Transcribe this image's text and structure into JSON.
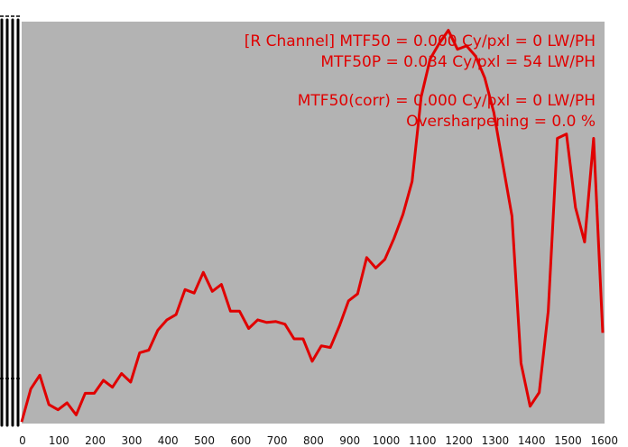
{
  "chart_data": {
    "type": "line",
    "title": "",
    "xlabel": "",
    "ylabel": "",
    "xlim": [
      0,
      1600
    ],
    "x_ticks": [
      "0",
      "100",
      "200",
      "300",
      "400",
      "500",
      "600",
      "700",
      "800",
      "900",
      "1000",
      "1100",
      "1200",
      "1300",
      "1400",
      "1500",
      "1600"
    ],
    "grid": false,
    "series": [
      {
        "color": "#e00000",
        "x": [
          0,
          25,
          50,
          75,
          100,
          125,
          150,
          175,
          200,
          225,
          250,
          275,
          300,
          325,
          350,
          375,
          400,
          425,
          450,
          475,
          500,
          525,
          550,
          575,
          600,
          625,
          650,
          675,
          700,
          725,
          750,
          775,
          800,
          825,
          850,
          875,
          900,
          925,
          950,
          975,
          1000,
          1025,
          1050,
          1075,
          1100,
          1125,
          1150,
          1175,
          1200,
          1225,
          1250,
          1275,
          1300,
          1325,
          1350,
          1375,
          1400,
          1425,
          1450,
          1475,
          1500,
          1525,
          1550,
          1575,
          1600
        ],
        "y": [
          2,
          40,
          56,
          22,
          16,
          24,
          10,
          35,
          35,
          50,
          42,
          58,
          48,
          82,
          85,
          108,
          120,
          126,
          155,
          151,
          175,
          153,
          161,
          130,
          130,
          110,
          120,
          117,
          118,
          115,
          98,
          98,
          72,
          90,
          88,
          113,
          142,
          150,
          192,
          180,
          190,
          214,
          242,
          280,
          378,
          422,
          440,
          455,
          433,
          437,
          425,
          400,
          360,
          300,
          240,
          70,
          20,
          36,
          130,
          330,
          335,
          250,
          210,
          330,
          105
        ]
      }
    ]
  },
  "annotations": {
    "line1": "[R Channel]    MTF50 = 0.000 Cy/pxl = 0 LW/PH",
    "line2": "MTF50P = 0.034 Cy/pxl = 54 LW/PH",
    "line3": "MTF50(corr) = 0.000 Cy/pxl = 0 LW/PH",
    "line4": "Oversharpening = 0.0 %"
  },
  "colors": {
    "plot_background": "#b3b3b3",
    "line": "#e00000",
    "annotation": "#e00000",
    "left_bars": "#000000"
  }
}
